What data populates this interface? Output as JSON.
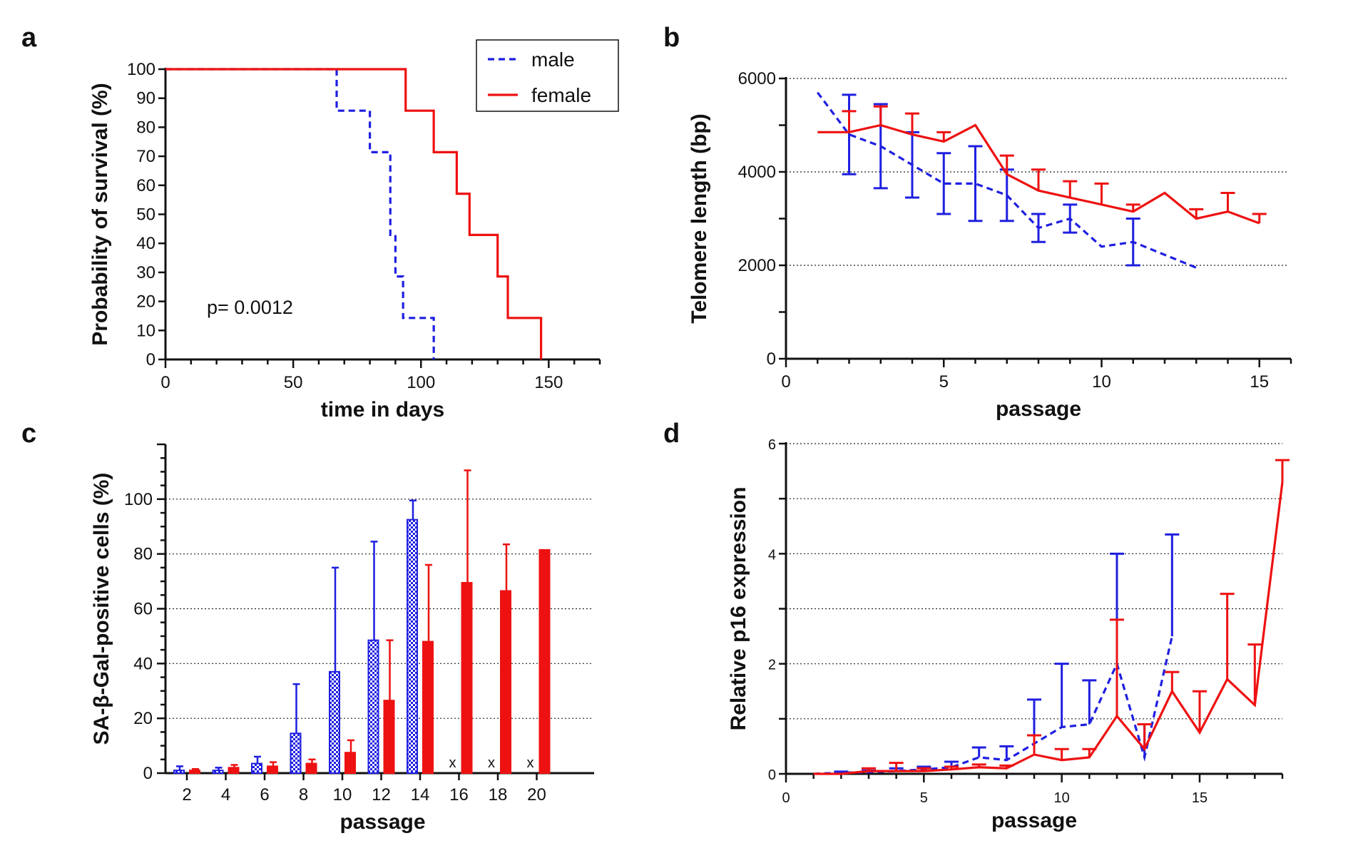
{
  "colors": {
    "male": "#1f1fe0",
    "female": "#ee1111",
    "axis": "#111111",
    "grid": "#222222"
  },
  "panels": {
    "a": {
      "letter": "a"
    },
    "b": {
      "letter": "b"
    },
    "c": {
      "letter": "c"
    },
    "d": {
      "letter": "d"
    }
  },
  "chart_data": [
    {
      "id": "a",
      "type": "line",
      "step": true,
      "title": "",
      "xlabel": "time in days",
      "ylabel": "Probability of survival (%)",
      "xlim": [
        0,
        170
      ],
      "ylim": [
        0,
        100
      ],
      "xticks": [
        0,
        50,
        100,
        150
      ],
      "yticks": [
        0,
        10,
        20,
        30,
        40,
        50,
        60,
        70,
        80,
        90,
        100
      ],
      "legend": {
        "placement": "top-right",
        "entries": [
          "male",
          "female"
        ]
      },
      "annotation": "p= 0.0012",
      "series": [
        {
          "name": "male",
          "style": "dashed",
          "x": [
            0,
            67,
            80,
            88,
            90,
            93,
            105
          ],
          "y": [
            100,
            85.7,
            71.4,
            42.9,
            28.6,
            14.3,
            0
          ]
        },
        {
          "name": "female",
          "style": "solid",
          "x": [
            0,
            94,
            105,
            114,
            119,
            130,
            134,
            147
          ],
          "y": [
            100,
            85.7,
            71.4,
            57.1,
            42.9,
            28.6,
            14.3,
            0
          ]
        }
      ]
    },
    {
      "id": "b",
      "type": "line",
      "title": "",
      "xlabel": "passage",
      "ylabel": "Telomere length (bp)",
      "xlim": [
        0,
        16
      ],
      "ylim": [
        0,
        6000
      ],
      "xticks": [
        0,
        5,
        10,
        15
      ],
      "yticks": [
        0,
        2000,
        4000,
        6000
      ],
      "grid": "horizontal-dotted",
      "series": [
        {
          "name": "male",
          "style": "dashed",
          "error": "both",
          "x": [
            1,
            2,
            3,
            4,
            5,
            6,
            7,
            8,
            9,
            10,
            11,
            13
          ],
          "y": [
            5700,
            4800,
            4550,
            4150,
            3750,
            3750,
            3500,
            2800,
            3000,
            2400,
            2500,
            1950
          ],
          "err": [
            0,
            850,
            900,
            700,
            650,
            800,
            550,
            300,
            300,
            0,
            500,
            0
          ]
        },
        {
          "name": "female",
          "style": "solid",
          "error": "up",
          "x": [
            1,
            2,
            3,
            4,
            5,
            6,
            7,
            8,
            9,
            10,
            11,
            12,
            13,
            14,
            15
          ],
          "y": [
            4850,
            4850,
            5000,
            4800,
            4650,
            5000,
            3950,
            3600,
            3450,
            3300,
            3150,
            3550,
            3000,
            3150,
            2900
          ],
          "err": [
            0,
            450,
            400,
            450,
            200,
            0,
            400,
            450,
            350,
            450,
            150,
            0,
            200,
            400,
            200
          ]
        }
      ]
    },
    {
      "id": "c",
      "type": "bar",
      "title": "",
      "xlabel": "passage",
      "ylabel": "SA-β-Gal-positive cells (%)",
      "ylim": [
        0,
        120
      ],
      "yticks": [
        0,
        20,
        40,
        60,
        80,
        100
      ],
      "grid": "horizontal-dotted",
      "categories": [
        "2",
        "4",
        "6",
        "8",
        "10",
        "12",
        "14",
        "16",
        "18",
        "20"
      ],
      "missing_marker": "x",
      "series": [
        {
          "name": "male",
          "fill": "hatched",
          "values": [
            1,
            1,
            3.5,
            14.5,
            37,
            48.5,
            92.5,
            null,
            null,
            null
          ],
          "err": [
            1.5,
            1,
            2.5,
            18,
            38,
            36,
            7,
            null,
            null,
            null
          ]
        },
        {
          "name": "female",
          "fill": "solid",
          "values": [
            1,
            2,
            2.5,
            3.5,
            7.5,
            26.5,
            48,
            69.5,
            66.5,
            81.5
          ],
          "err": [
            0.5,
            1,
            1.5,
            1.5,
            4.5,
            22,
            28,
            41,
            17,
            0
          ]
        }
      ]
    },
    {
      "id": "d",
      "type": "line",
      "title": "",
      "xlabel": "passage",
      "ylabel": "Relative p16 expression",
      "xlim": [
        0,
        18
      ],
      "ylim": [
        0,
        6
      ],
      "xticks": [
        0,
        5,
        10,
        15
      ],
      "yticks": [
        0,
        2,
        4,
        6
      ],
      "grid": "horizontal-dotted-every-1",
      "series": [
        {
          "name": "male",
          "style": "dashed",
          "error": "up",
          "x": [
            1,
            2,
            3,
            4,
            5,
            6,
            7,
            8,
            9,
            10,
            11,
            12,
            13,
            14
          ],
          "y": [
            0,
            0.02,
            0.03,
            0.05,
            0.08,
            0.12,
            0.3,
            0.25,
            0.55,
            0.85,
            0.9,
            2.0,
            0.3,
            2.5
          ],
          "err": [
            0,
            0.02,
            0.03,
            0.05,
            0.05,
            0.1,
            0.18,
            0.25,
            0.8,
            1.15,
            0.8,
            2.0,
            0.6,
            1.85
          ]
        },
        {
          "name": "female",
          "style": "solid",
          "error": "up",
          "x": [
            1,
            2,
            3,
            4,
            5,
            6,
            7,
            8,
            9,
            10,
            11,
            12,
            13,
            14,
            15,
            16,
            17,
            18
          ],
          "y": [
            0,
            0,
            0.05,
            0.05,
            0.05,
            0.08,
            0.12,
            0.1,
            0.35,
            0.25,
            0.3,
            1.05,
            0.45,
            1.5,
            0.75,
            1.72,
            1.25,
            5.3
          ],
          "err": [
            0,
            0,
            0.05,
            0.15,
            0.05,
            0.05,
            0.05,
            0.05,
            0.35,
            0.2,
            0.15,
            1.75,
            0.45,
            0.35,
            0.75,
            1.55,
            1.1,
            0.4
          ]
        }
      ]
    }
  ]
}
